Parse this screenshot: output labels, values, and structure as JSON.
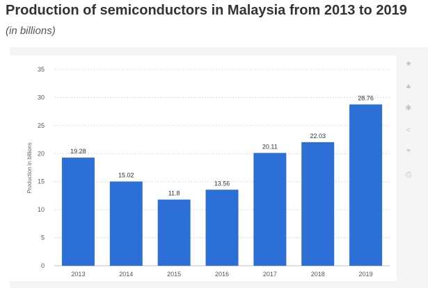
{
  "chart_data": {
    "type": "bar",
    "title": "Production of semiconductors in Malaysia from 2013 to 2019",
    "subtitle": "(in billions)",
    "ylabel": "Production in billions",
    "xlabel": "",
    "categories": [
      "2013",
      "2014",
      "2015",
      "2016",
      "2017",
      "2018",
      "2019"
    ],
    "values": [
      19.28,
      15.02,
      11.8,
      13.56,
      20.11,
      22.03,
      28.76
    ],
    "value_labels": [
      "19.28",
      "15.02",
      "11.8",
      "13.56",
      "20.11",
      "22.03",
      "28.76"
    ],
    "ylim": [
      0,
      35
    ],
    "yticks": [
      0,
      5,
      10,
      15,
      20,
      25,
      30,
      35
    ],
    "grid": true,
    "bar_color": "#2c6fd6"
  },
  "sidebar": {
    "icons": [
      "star-icon",
      "bell-icon",
      "gear-icon",
      "share-icon",
      "quote-icon",
      "print-icon"
    ],
    "glyphs": [
      "★",
      "▲",
      "✱",
      "<",
      "❞",
      "⎙"
    ]
  }
}
